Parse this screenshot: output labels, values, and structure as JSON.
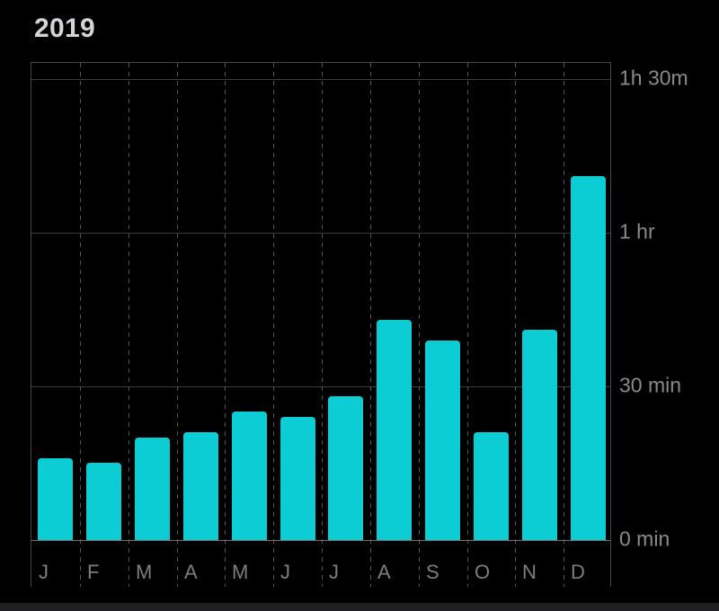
{
  "page": {
    "title": "2019"
  },
  "colors": {
    "background": "#000000",
    "bar": "#0bcdd3",
    "title_text": "#d4d4d8",
    "axis_text": "#8a8a8e",
    "month_text": "#7d7d82",
    "gridline": "#3c3c3f",
    "baseline": "#737378",
    "border": "#47474b",
    "dashed": "#56565a",
    "bottom_strip": "#202022"
  },
  "chart_data": {
    "type": "bar",
    "title": "2019",
    "categories": [
      "J",
      "F",
      "M",
      "A",
      "M",
      "J",
      "J",
      "A",
      "S",
      "O",
      "N",
      "D"
    ],
    "values_minutes": [
      16,
      15,
      20,
      21,
      25,
      24,
      28,
      43,
      39,
      21,
      41,
      71
    ],
    "unit": "minutes",
    "xlabel": "",
    "ylabel": "",
    "ylim_minutes": [
      0,
      93
    ],
    "y_ticks": [
      {
        "minutes": 0,
        "label": "0 min"
      },
      {
        "minutes": 30,
        "label": "30 min"
      },
      {
        "minutes": 60,
        "label": "1 hr"
      },
      {
        "minutes": 90,
        "label": "1h 30m"
      }
    ],
    "grid": {
      "horizontal": "solid",
      "vertical": "dashed-month-separators"
    },
    "legend_position": "none"
  }
}
